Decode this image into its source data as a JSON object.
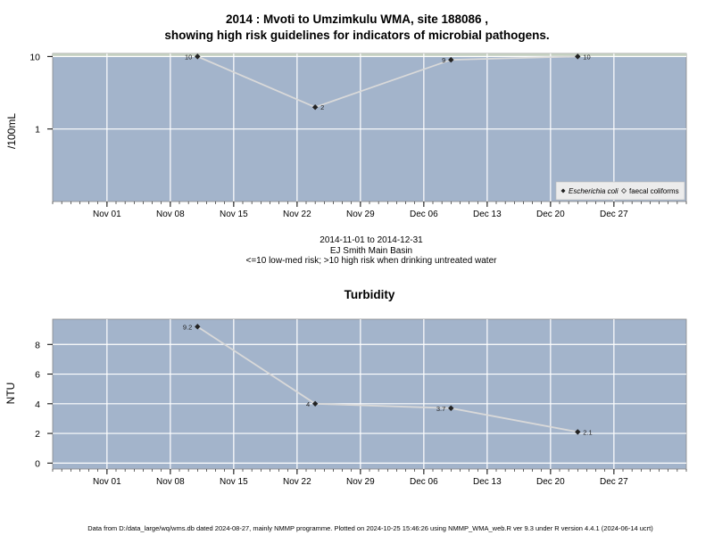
{
  "header": {
    "title_line1": "2014 : Mvoti to Umzimkulu WMA, site 188086 ,",
    "title_line2": "showing high risk guidelines for indicators of microbial pathogens."
  },
  "middle": {
    "date_range": "2014-11-01 to 2014-12-31",
    "basin": "EJ Smith Main Basin",
    "risk_note": "<=10 low-med risk; >10 high risk when drinking untreated water"
  },
  "turbidity_title": "Turbidity",
  "footer": "Data from D:/data_large/wq/wms.db dated 2024-08-27, mainly NMMP programme. Plotted on 2024-10-25 15:46:26 using NMMP_WMA_web.R ver 9.3 under R version 4.4.1 (2024-06-14 ucrt)",
  "colors": {
    "panel_bg": "#a3b4cb",
    "guideline_band": "#c4cfc0",
    "grid": "#ffffff",
    "series_line": "#d9d9d9",
    "point": "#222222"
  },
  "chart_data": [
    {
      "type": "line",
      "ylabel": "/100mL",
      "yscale": "log",
      "ylim": [
        0.1,
        11
      ],
      "yticks": [
        {
          "v": 1,
          "label": "1"
        },
        {
          "v": 10,
          "label": "10"
        }
      ],
      "guideline_band": [
        10,
        11
      ],
      "xlim": [
        "2014-10-26",
        "2015-01-04"
      ],
      "xticks": [
        "2014-11-01",
        "2014-11-08",
        "2014-11-15",
        "2014-11-22",
        "2014-11-29",
        "2014-12-06",
        "2014-12-13",
        "2014-12-20",
        "2014-12-27"
      ],
      "xtick_labels": [
        "Nov 01",
        "Nov 08",
        "Nov 15",
        "Nov 22",
        "Nov 29",
        "Dec 06",
        "Dec 13",
        "Dec 20",
        "Dec 27"
      ],
      "legend": {
        "position": "bottom-right",
        "entries": [
          {
            "name": "Escherichia coli",
            "marker": "filled-diamond"
          },
          {
            "name": "faecal coliforms",
            "marker": "open-diamond"
          }
        ]
      },
      "series": [
        {
          "name": "Escherichia coli",
          "x": [
            "2014-11-11",
            "2014-11-24",
            "2014-12-09",
            "2014-12-23"
          ],
          "values": [
            10,
            2,
            9,
            10
          ],
          "labels": [
            "10",
            "2",
            "9",
            "10"
          ]
        }
      ]
    },
    {
      "type": "line",
      "title": "Turbidity",
      "ylabel": "NTU",
      "ylim": [
        -0.4,
        9.7
      ],
      "yticks": [
        {
          "v": 0,
          "label": "0"
        },
        {
          "v": 2,
          "label": "2"
        },
        {
          "v": 4,
          "label": "4"
        },
        {
          "v": 6,
          "label": "6"
        },
        {
          "v": 8,
          "label": "8"
        }
      ],
      "xlim": [
        "2014-10-26",
        "2015-01-04"
      ],
      "xticks": [
        "2014-11-01",
        "2014-11-08",
        "2014-11-15",
        "2014-11-22",
        "2014-11-29",
        "2014-12-06",
        "2014-12-13",
        "2014-12-20",
        "2014-12-27"
      ],
      "xtick_labels": [
        "Nov 01",
        "Nov 08",
        "Nov 15",
        "Nov 22",
        "Nov 29",
        "Dec 06",
        "Dec 13",
        "Dec 20",
        "Dec 27"
      ],
      "series": [
        {
          "x": [
            "2014-11-11",
            "2014-11-24",
            "2014-12-09",
            "2014-12-23"
          ],
          "values": [
            9.2,
            4,
            3.7,
            2.1
          ],
          "labels": [
            "9.2",
            "4",
            "3.7",
            "2.1"
          ]
        }
      ]
    }
  ]
}
